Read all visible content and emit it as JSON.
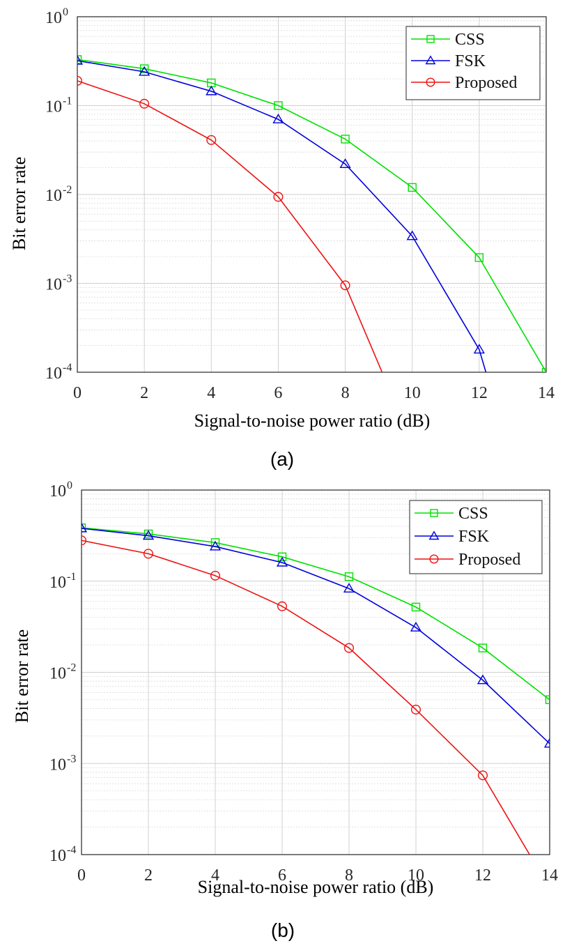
{
  "chart_data": [
    {
      "type": "line",
      "panel_label": "(a)",
      "xlabel": "Signal-to-noise power ratio (dB)",
      "ylabel": "Bit error rate",
      "xlim": [
        0,
        14
      ],
      "ylim": [
        0.0001,
        1
      ],
      "yscale": "log",
      "grid": true,
      "legend_position": "top-right",
      "x_ticks": [
        "0",
        "2",
        "4",
        "6",
        "8",
        "10",
        "12",
        "14"
      ],
      "y_ticks": [
        {
          "base": "10",
          "exp": "-4"
        },
        {
          "base": "10",
          "exp": "-3"
        },
        {
          "base": "10",
          "exp": "-2"
        },
        {
          "base": "10",
          "exp": "-1"
        },
        {
          "base": "10",
          "exp": "0"
        }
      ],
      "series": [
        {
          "name": "CSS",
          "color": "#00e000",
          "marker": "square",
          "x": [
            0,
            2,
            4,
            6,
            8,
            10,
            12,
            14
          ],
          "y": [
            0.33,
            0.26,
            0.18,
            0.1,
            0.042,
            0.012,
            0.00195,
            0.0001
          ]
        },
        {
          "name": "FSK",
          "color": "#0000dd",
          "marker": "triangle",
          "x": [
            0,
            2,
            4,
            6,
            8,
            10,
            12,
            12.2
          ],
          "y": [
            0.32,
            0.24,
            0.145,
            0.07,
            0.022,
            0.0034,
            0.00018,
            0.0001
          ],
          "marker_count": 7
        },
        {
          "name": "Proposed",
          "color": "#ee1111",
          "marker": "circle",
          "x": [
            0,
            2,
            4,
            6,
            8,
            9.1
          ],
          "y": [
            0.19,
            0.105,
            0.041,
            0.0094,
            0.00095,
            0.0001
          ],
          "marker_count": 5
        }
      ]
    },
    {
      "type": "line",
      "panel_label": "(b)",
      "xlabel": "Signal-to-noise power ratio (dB)",
      "ylabel": "Bit error rate",
      "xlim": [
        0,
        14
      ],
      "ylim": [
        0.0001,
        1
      ],
      "yscale": "log",
      "grid": true,
      "legend_position": "top-right",
      "x_ticks": [
        "0",
        "2",
        "4",
        "6",
        "8",
        "10",
        "12",
        "14"
      ],
      "y_ticks": [
        {
          "base": "10",
          "exp": "-4"
        },
        {
          "base": "10",
          "exp": "-3"
        },
        {
          "base": "10",
          "exp": "-2"
        },
        {
          "base": "10",
          "exp": "-1"
        },
        {
          "base": "10",
          "exp": "0"
        }
      ],
      "series": [
        {
          "name": "CSS",
          "color": "#00e000",
          "marker": "square",
          "x": [
            0,
            2,
            4,
            6,
            8,
            10,
            12,
            14
          ],
          "y": [
            0.385,
            0.33,
            0.265,
            0.185,
            0.112,
            0.052,
            0.0185,
            0.005
          ]
        },
        {
          "name": "FSK",
          "color": "#0000dd",
          "marker": "triangle",
          "x": [
            0,
            2,
            4,
            6,
            8,
            10,
            12,
            14
          ],
          "y": [
            0.38,
            0.315,
            0.24,
            0.16,
            0.083,
            0.031,
            0.0082,
            0.00165
          ]
        },
        {
          "name": "Proposed",
          "color": "#ee1111",
          "marker": "circle",
          "x": [
            0,
            2,
            4,
            6,
            8,
            10,
            12,
            13.4
          ],
          "y": [
            0.28,
            0.2,
            0.115,
            0.053,
            0.0185,
            0.0039,
            0.00074,
            0.0001
          ],
          "marker_count": 7
        }
      ]
    }
  ]
}
